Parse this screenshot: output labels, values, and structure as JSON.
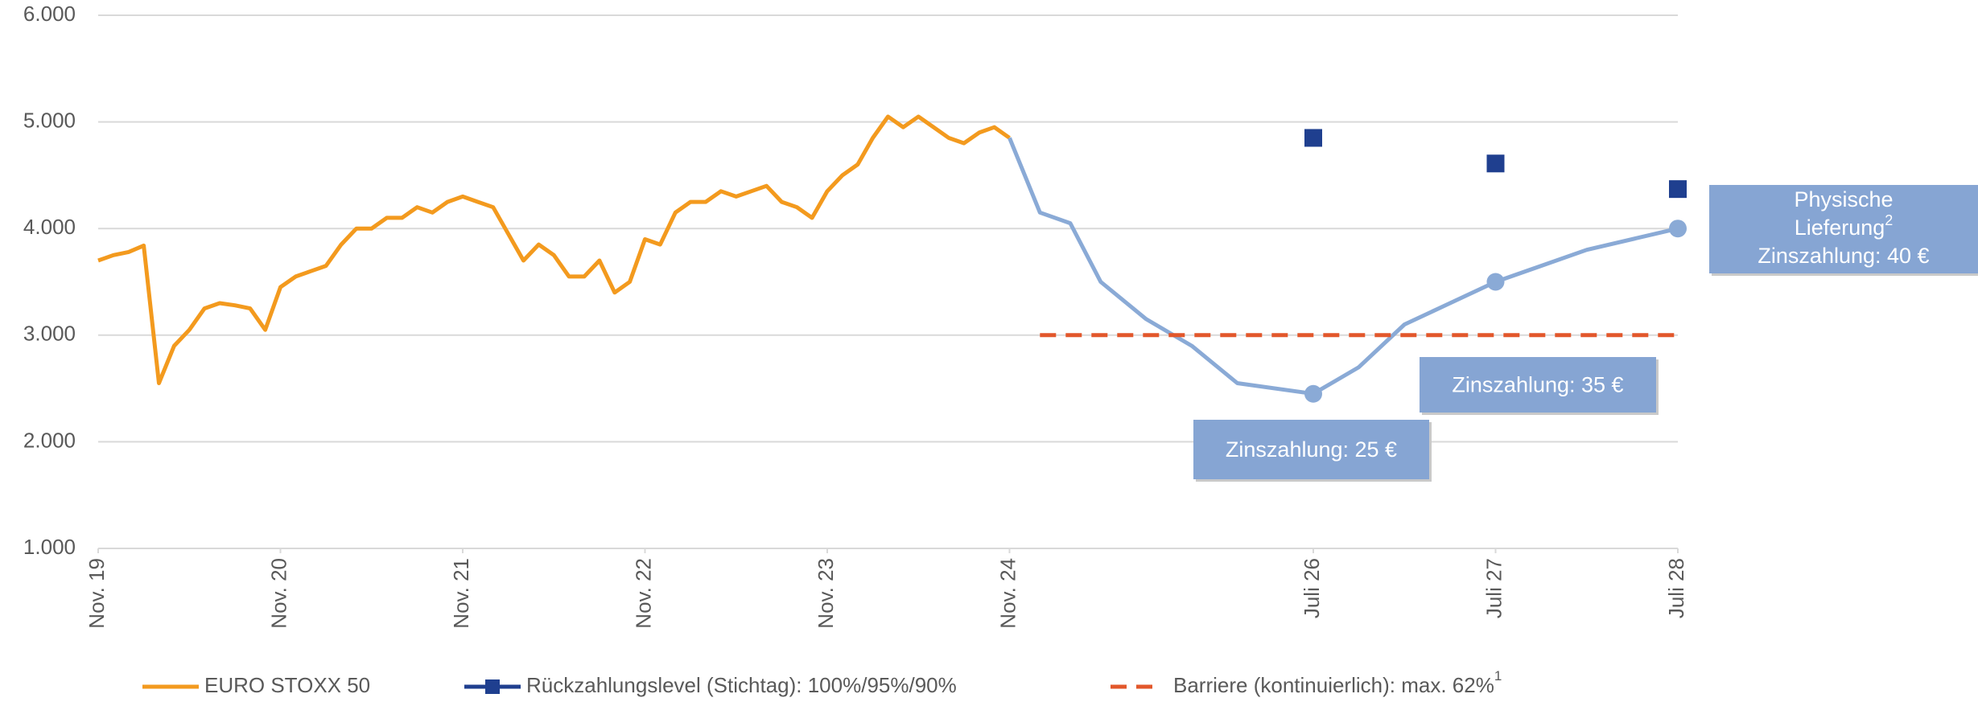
{
  "chart_data": {
    "type": "line",
    "ylim": [
      1000,
      6000
    ],
    "yticks": [
      {
        "value": 1000,
        "label": "1.000"
      },
      {
        "value": 2000,
        "label": "2.000"
      },
      {
        "value": 3000,
        "label": "3.000"
      },
      {
        "value": 4000,
        "label": "4.000"
      },
      {
        "value": 5000,
        "label": "5.000"
      },
      {
        "value": 6000,
        "label": "6.000"
      }
    ],
    "xlim": [
      "2019-11",
      "2028-07"
    ],
    "xticks": [
      {
        "value": "2019-11",
        "label": "Nov. 19"
      },
      {
        "value": "2020-11",
        "label": "Nov. 20"
      },
      {
        "value": "2021-11",
        "label": "Nov. 21"
      },
      {
        "value": "2022-11",
        "label": "Nov. 22"
      },
      {
        "value": "2023-11",
        "label": "Nov. 23"
      },
      {
        "value": "2024-11",
        "label": "Nov. 24"
      },
      {
        "value": "2026-07",
        "label": "Juli 26"
      },
      {
        "value": "2027-07",
        "label": "Juli 27"
      },
      {
        "value": "2028-07",
        "label": "Juli 28"
      }
    ],
    "grid": true,
    "series": [
      {
        "name": "EURO STOXX 50",
        "color": "#f39a1e",
        "marker": "line",
        "x": [
          "2019-11",
          "2019-12",
          "2020-01",
          "2020-02",
          "2020-03",
          "2020-04",
          "2020-05",
          "2020-06",
          "2020-07",
          "2020-08",
          "2020-09",
          "2020-10",
          "2020-11",
          "2020-12",
          "2021-01",
          "2021-02",
          "2021-03",
          "2021-04",
          "2021-05",
          "2021-06",
          "2021-07",
          "2021-08",
          "2021-09",
          "2021-10",
          "2021-11",
          "2021-12",
          "2022-01",
          "2022-02",
          "2022-03",
          "2022-04",
          "2022-05",
          "2022-06",
          "2022-07",
          "2022-08",
          "2022-09",
          "2022-10",
          "2022-11",
          "2022-12",
          "2023-01",
          "2023-02",
          "2023-03",
          "2023-04",
          "2023-05",
          "2023-06",
          "2023-07",
          "2023-08",
          "2023-09",
          "2023-10",
          "2023-11",
          "2023-12",
          "2024-01",
          "2024-02",
          "2024-03",
          "2024-04",
          "2024-05",
          "2024-06",
          "2024-07",
          "2024-08",
          "2024-09",
          "2024-10",
          "2024-11"
        ],
        "values": [
          3700,
          3750,
          3780,
          3840,
          2550,
          2900,
          3050,
          3250,
          3300,
          3280,
          3250,
          3050,
          3450,
          3550,
          3600,
          3650,
          3850,
          4000,
          4000,
          4100,
          4100,
          4200,
          4150,
          4250,
          4300,
          4250,
          4200,
          3950,
          3700,
          3850,
          3750,
          3550,
          3550,
          3700,
          3400,
          3500,
          3900,
          3850,
          4150,
          4250,
          4250,
          4350,
          4300,
          4350,
          4400,
          4250,
          4200,
          4100,
          4350,
          4500,
          4600,
          4850,
          5050,
          4950,
          5050,
          4950,
          4850,
          4800,
          4900,
          4950,
          4850
        ]
      },
      {
        "color": "#8aaad6",
        "marker": "line",
        "x": [
          "2024-11",
          "2025-01",
          "2025-03",
          "2025-05",
          "2025-08",
          "2025-11",
          "2026-02",
          "2026-07",
          "2026-10",
          "2027-01",
          "2027-07",
          "2028-01",
          "2028-07"
        ],
        "values": [
          4850,
          4150,
          4050,
          3500,
          3150,
          2900,
          2550,
          2450,
          2700,
          3100,
          3500,
          3800,
          4000
        ]
      },
      {
        "color": "#8aaad6",
        "marker": "circle",
        "x": [
          "2026-07",
          "2027-07",
          "2028-07"
        ],
        "values": [
          2450,
          3500,
          4000
        ]
      },
      {
        "name": "Rückzahlungslevel (Stichtag): 100%/95%/90%",
        "color": "#1f3f8f",
        "marker": "square",
        "x": [
          "2026-07",
          "2027-07",
          "2028-07"
        ],
        "values": [
          4850,
          4610,
          4370
        ]
      },
      {
        "name": "Barriere (kontinuierlich): max. 62%",
        "name_sup": "1",
        "color": "#e2572b",
        "marker": "dash",
        "x": [
          "2025-01",
          "2028-07"
        ],
        "values": [
          3000,
          3000
        ]
      }
    ],
    "annotations": [
      {
        "text": "Zinszahlung: 25 €"
      },
      {
        "text": "Zinszahlung: 35 €"
      },
      {
        "line1": "Physische",
        "line2": "Lieferung",
        "line2_sup": "2",
        "line3": "Zinszahlung: 40 €"
      }
    ]
  }
}
